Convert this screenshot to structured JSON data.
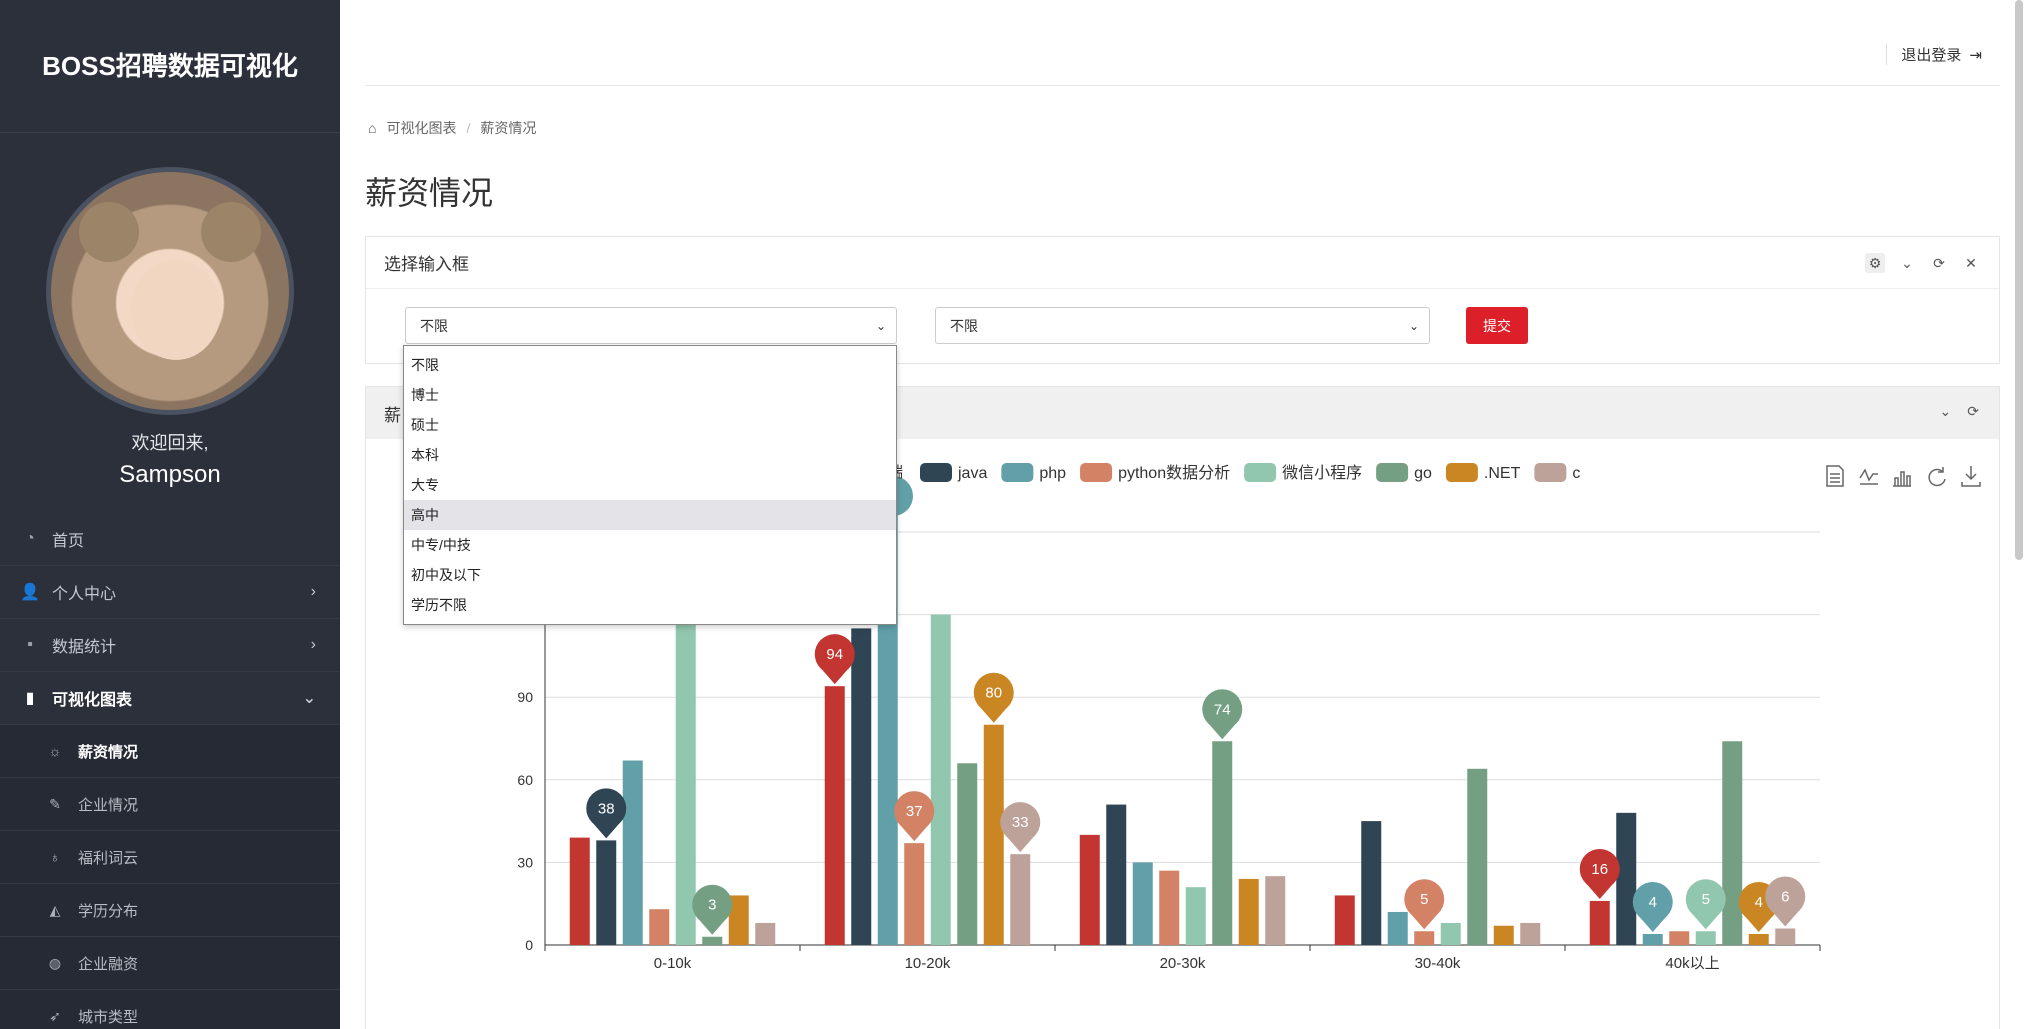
{
  "app": {
    "title": "BOSS招聘数据可视化"
  },
  "user": {
    "welcome": "欢迎回来,",
    "name": "Sampson"
  },
  "menu": {
    "home": "首页",
    "personal": "个人中心",
    "stats": "数据统计",
    "charts": "可视化图表",
    "sub": [
      "薪资情况",
      "企业情况",
      "福利词云",
      "学历分布",
      "企业融资",
      "城市类型"
    ]
  },
  "header": {
    "logout": "退出登录"
  },
  "breadcrumb": {
    "root": "可视化图表",
    "current": "薪资情况"
  },
  "page": {
    "title": "薪资情况"
  },
  "filter_panel": {
    "title": "选择输入框",
    "select1_value": "不限",
    "select2_value": "不限",
    "submit": "提交"
  },
  "dropdown": {
    "options": [
      "不限",
      "博士",
      "硕士",
      "本科",
      "大专",
      "高中",
      "中专/中技",
      "初中及以下",
      "学历不限"
    ],
    "highlighted": "高中"
  },
  "chart_panel": {
    "title_visible": "薪"
  },
  "chart_data": {
    "type": "bar",
    "categories": [
      "0-10k",
      "10-20k",
      "20-30k",
      "30-40k",
      "40k以上"
    ],
    "ylim": [
      0,
      150
    ],
    "yticks": [
      0,
      30,
      60,
      90
    ],
    "legend_visible_partial": "端",
    "series": [
      {
        "name": "",
        "color": "#c23531",
        "values": [
          39,
          94,
          40,
          18,
          16
        ]
      },
      {
        "name": "java",
        "color": "#2f4554",
        "values": [
          38,
          115,
          51,
          45,
          48
        ]
      },
      {
        "name": "php",
        "color": "#61a0a8",
        "values": [
          67,
          160,
          30,
          12,
          4
        ]
      },
      {
        "name": "python数据分析",
        "color": "#d48265",
        "values": [
          13,
          37,
          27,
          5,
          5
        ]
      },
      {
        "name": "微信小程序",
        "color": "#91c7ae",
        "values": [
          120,
          120,
          21,
          8,
          5
        ]
      },
      {
        "name": "go",
        "color": "#749f83",
        "values": [
          3,
          66,
          74,
          64,
          74
        ]
      },
      {
        "name": ".NET",
        "color": "#ca8622",
        "values": [
          18,
          80,
          24,
          7,
          4
        ]
      },
      {
        "name": "c",
        "color": "#bda29a",
        "values": [
          8,
          33,
          25,
          8,
          6
        ]
      }
    ],
    "markers": [
      {
        "series": 1,
        "cat": 0,
        "label": "38"
      },
      {
        "series": 5,
        "cat": 0,
        "label": "3"
      },
      {
        "series": 0,
        "cat": 1,
        "label": "94"
      },
      {
        "series": 3,
        "cat": 1,
        "label": "37"
      },
      {
        "series": 6,
        "cat": 1,
        "label": "80"
      },
      {
        "series": 7,
        "cat": 1,
        "label": "33"
      },
      {
        "series": 5,
        "cat": 2,
        "label": "74"
      },
      {
        "series": 3,
        "cat": 3,
        "label": "5"
      },
      {
        "series": 0,
        "cat": 4,
        "label": "16"
      },
      {
        "series": 2,
        "cat": 4,
        "label": "4"
      },
      {
        "series": 4,
        "cat": 4,
        "label": "5"
      },
      {
        "series": 6,
        "cat": 4,
        "label": "4"
      },
      {
        "series": 7,
        "cat": 4,
        "label": "6"
      }
    ]
  }
}
